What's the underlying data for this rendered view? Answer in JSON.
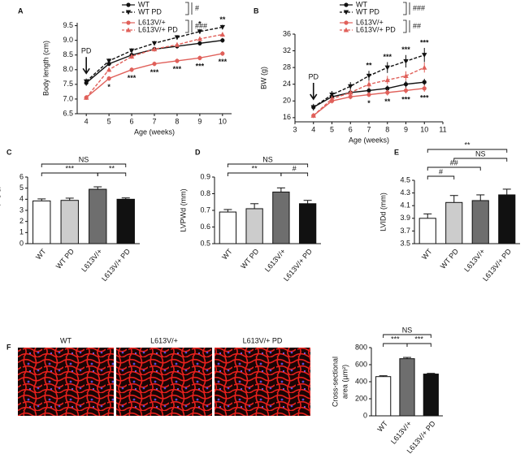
{
  "chart_data": [
    {
      "panel": "A",
      "type": "line",
      "x_label": "Age (weeks)",
      "y_label": "Body length (cm)",
      "x": [
        4,
        5,
        6,
        7,
        8,
        9,
        10
      ],
      "xlim": [
        3.6,
        10.4
      ],
      "xticks": [
        4,
        5,
        6,
        7,
        8,
        9,
        10
      ],
      "ylim": [
        6.5,
        9.6
      ],
      "yticks": [
        6.5,
        {
          "value": 7,
          "label": "7.0"
        },
        7.5,
        {
          "value": 8,
          "label": "8.0"
        },
        8.5,
        {
          "value": 9,
          "label": "9.0"
        },
        9.5
      ],
      "pd_arrow": {
        "text": "PD",
        "x": 4
      },
      "series": [
        {
          "name": "WT",
          "color": "#111111",
          "dash": false,
          "marker": "circle",
          "values": [
            7.55,
            8.2,
            8.5,
            8.7,
            8.8,
            8.9,
            9.0
          ],
          "errors": [
            0.1,
            0.08,
            0.08,
            0.08,
            0.08,
            0.08,
            0.08
          ]
        },
        {
          "name": "WT PD",
          "color": "#111111",
          "dash": true,
          "marker": "triangle-down",
          "values": [
            7.6,
            8.3,
            8.65,
            8.9,
            9.1,
            9.3,
            9.45
          ],
          "errors": [
            0.1,
            0.08,
            0.08,
            0.08,
            0.08,
            0.08,
            0.08
          ]
        },
        {
          "name": "L613V/+",
          "color": "#e0605a",
          "dash": false,
          "marker": "circle",
          "values": [
            7.05,
            7.7,
            8.0,
            8.2,
            8.3,
            8.4,
            8.55
          ],
          "errors": [
            0.08,
            0.08,
            0.08,
            0.08,
            0.08,
            0.08,
            0.08
          ]
        },
        {
          "name": "L613V/+ PD",
          "color": "#e0605a",
          "dash": true,
          "marker": "triangle-up",
          "values": [
            7.05,
            8.0,
            8.45,
            8.7,
            8.85,
            9.05,
            9.2
          ],
          "errors": [
            0.08,
            0.08,
            0.08,
            0.08,
            0.08,
            0.08,
            0.08
          ]
        }
      ],
      "legend_stats": [
        "#",
        "###"
      ],
      "stars": [
        {
          "series": 1,
          "x": 9,
          "text": "*",
          "position": "above"
        },
        {
          "series": 1,
          "x": 10,
          "text": "**",
          "position": "above"
        },
        {
          "series": 2,
          "x": 5,
          "text": "*",
          "position": "below"
        },
        {
          "series": 2,
          "x": 6,
          "text": "***",
          "position": "below"
        },
        {
          "series": 2,
          "x": 7,
          "text": "***",
          "position": "below"
        },
        {
          "series": 2,
          "x": 8,
          "text": "***",
          "position": "below"
        },
        {
          "series": 2,
          "x": 9,
          "text": "***",
          "position": "below"
        },
        {
          "series": 2,
          "x": 10,
          "text": "***",
          "position": "below"
        }
      ]
    },
    {
      "panel": "B",
      "type": "line",
      "x_label": "Age (weeks)",
      "y_label": "BW (g)",
      "x": [
        4,
        5,
        6,
        7,
        8,
        9,
        10
      ],
      "xlim": [
        3,
        11
      ],
      "xticks": [
        3,
        4,
        5,
        6,
        7,
        8,
        9,
        10,
        11
      ],
      "ylim": [
        15,
        36
      ],
      "yticks": [
        16,
        20,
        24,
        28,
        32,
        36
      ],
      "pd_arrow": {
        "text": "PD",
        "x": 4
      },
      "series": [
        {
          "name": "WT",
          "color": "#111111",
          "dash": false,
          "marker": "circle",
          "values": [
            18.5,
            21,
            22,
            22.5,
            23,
            24,
            24.5
          ],
          "errors": [
            0.6,
            0.6,
            0.7,
            0.7,
            0.7,
            0.8,
            0.8
          ]
        },
        {
          "name": "WT PD",
          "color": "#111111",
          "dash": true,
          "marker": "triangle-down",
          "values": [
            18.5,
            21.5,
            23.5,
            26,
            28,
            29.5,
            31
          ],
          "errors": [
            0.8,
            0.9,
            1.0,
            1.2,
            1.3,
            1.5,
            1.7
          ]
        },
        {
          "name": "L613V/+",
          "color": "#e0605a",
          "dash": false,
          "marker": "circle",
          "values": [
            16.5,
            20,
            21,
            21.5,
            22,
            22.5,
            23
          ],
          "errors": [
            0.5,
            0.6,
            0.6,
            0.6,
            0.7,
            0.7,
            0.8
          ]
        },
        {
          "name": "L613V/+ PD",
          "color": "#e0605a",
          "dash": true,
          "marker": "triangle-up",
          "values": [
            16.5,
            20.5,
            22,
            24,
            25,
            26,
            28
          ],
          "errors": [
            0.6,
            0.7,
            0.8,
            0.9,
            1.0,
            1.1,
            1.2
          ]
        }
      ],
      "legend_stats": [
        "###",
        "##"
      ],
      "stars": [
        {
          "series": 1,
          "x": 7,
          "text": "**",
          "position": "above"
        },
        {
          "series": 1,
          "x": 8,
          "text": "***",
          "position": "above"
        },
        {
          "series": 1,
          "x": 9,
          "text": "***",
          "position": "above"
        },
        {
          "series": 1,
          "x": 10,
          "text": "***",
          "position": "above"
        },
        {
          "series": 2,
          "x": 7,
          "text": "*",
          "position": "below"
        },
        {
          "series": 2,
          "x": 8,
          "text": "**",
          "position": "below"
        },
        {
          "series": 2,
          "x": 9,
          "text": "***",
          "position": "below"
        },
        {
          "series": 2,
          "x": 10,
          "text": "***",
          "position": "below"
        }
      ]
    },
    {
      "panel": "C",
      "type": "bar",
      "y_label": "HW/BW (mg/g)",
      "categories": [
        "WT",
        "WT PD",
        "L613V/+",
        "L613V/+ PD"
      ],
      "values": [
        3.85,
        3.9,
        4.9,
        4.0
      ],
      "errors": [
        0.18,
        0.2,
        0.22,
        0.12
      ],
      "colors": [
        "#ffffff",
        "#cccccc",
        "#6e6e6e",
        "#111111"
      ],
      "ylim": [
        0,
        6
      ],
      "yticks": [
        0,
        1,
        2,
        3,
        4,
        5,
        6
      ],
      "brackets": [
        {
          "between": [
            "WT",
            "L613V/+"
          ],
          "text": "***"
        },
        {
          "between": [
            "L613V/+",
            "L613V/+ PD"
          ],
          "text": "**"
        },
        {
          "between": [
            "WT",
            "L613V/+ PD"
          ],
          "text": "NS"
        }
      ]
    },
    {
      "panel": "D",
      "type": "bar",
      "y_label": "LVPWd (mm)",
      "categories": [
        "WT",
        "WT PD",
        "L613V/+",
        "L613V/+ PD"
      ],
      "values": [
        0.69,
        0.71,
        0.81,
        0.74
      ],
      "errors": [
        0.015,
        0.03,
        0.025,
        0.02
      ],
      "colors": [
        "#ffffff",
        "#cccccc",
        "#6e6e6e",
        "#111111"
      ],
      "ylim": [
        0.5,
        0.9
      ],
      "yticks": [
        0.5,
        0.6,
        0.7,
        0.8,
        0.9
      ],
      "brackets": [
        {
          "between": [
            "WT",
            "L613V/+"
          ],
          "text": "**"
        },
        {
          "between": [
            "L613V/+",
            "L613V/+ PD"
          ],
          "text": "#"
        },
        {
          "between": [
            "WT",
            "L613V/+ PD"
          ],
          "text": "NS"
        }
      ]
    },
    {
      "panel": "E",
      "type": "bar",
      "y_label": "LVIDd (mm)",
      "categories": [
        "WT",
        "WT PD",
        "L613V/+",
        "L613V/+ PD"
      ],
      "values": [
        3.9,
        4.15,
        4.18,
        4.27
      ],
      "errors": [
        0.07,
        0.11,
        0.09,
        0.09
      ],
      "colors": [
        "#ffffff",
        "#cccccc",
        "#6e6e6e",
        "#111111"
      ],
      "ylim": [
        3.5,
        4.5
      ],
      "yticks": [
        3.5,
        3.7,
        3.9,
        4.1,
        4.3,
        4.5
      ],
      "brackets": [
        {
          "between": [
            "WT",
            "WT PD"
          ],
          "text": "#"
        },
        {
          "between": [
            "WT",
            "L613V/+"
          ],
          "text": "##"
        },
        {
          "between": [
            "WT PD",
            "L613V/+ PD"
          ],
          "text": "NS"
        },
        {
          "between": [
            "WT",
            "L613V/+ PD"
          ],
          "text": "**"
        }
      ]
    },
    {
      "panel": "F",
      "type": "bar",
      "y_label": [
        "Cross-sectional",
        "area (µm²)"
      ],
      "image_labels": [
        "WT",
        "L613V/+",
        "L613V/+ PD"
      ],
      "categories": [
        "WT",
        "L613V/+",
        "L613V/+ PD"
      ],
      "values": [
        460,
        670,
        490
      ],
      "errors": [
        10,
        15,
        8
      ],
      "colors": [
        "#ffffff",
        "#6e6e6e",
        "#111111"
      ],
      "ylim": [
        0,
        800
      ],
      "yticks": [
        0,
        200,
        400,
        600,
        800
      ],
      "brackets": [
        {
          "between": [
            "WT",
            "L613V/+"
          ],
          "text": "***"
        },
        {
          "between": [
            "L613V/+",
            "L613V/+ PD"
          ],
          "text": "***"
        },
        {
          "between": [
            "WT",
            "L613V/+ PD"
          ],
          "text": "NS"
        }
      ]
    }
  ]
}
